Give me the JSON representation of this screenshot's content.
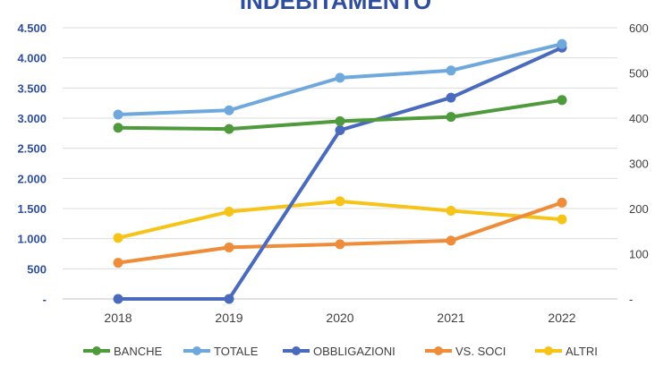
{
  "chart_data": {
    "type": "line",
    "title": "INDEBITAMENTO",
    "categories": [
      "2018",
      "2019",
      "2020",
      "2021",
      "2022"
    ],
    "y_left": {
      "ylim": [
        0,
        4500
      ],
      "ticks": [
        "-",
        "500",
        "1.000",
        "1.500",
        "2.000",
        "2.500",
        "3.000",
        "3.500",
        "4.000",
        "4.500"
      ],
      "color": "#2f4e9c"
    },
    "y_right": {
      "ylim": [
        0,
        600
      ],
      "ticks": [
        "-",
        "100",
        "200",
        "300",
        "400",
        "500",
        "600"
      ]
    },
    "grid": true,
    "legend_position": "bottom",
    "series": [
      {
        "name": "BANCHE",
        "axis": "left",
        "color": "#4e9a3c",
        "values": [
          2840,
          2820,
          2950,
          3020,
          3300
        ]
      },
      {
        "name": "TOTALE",
        "axis": "left",
        "color": "#6fa8dc",
        "values": [
          3060,
          3130,
          3670,
          3790,
          4230
        ]
      },
      {
        "name": "OBBLIGAZIONI",
        "axis": "left",
        "color": "#4a6bbd",
        "values": [
          0,
          0,
          2800,
          3340,
          4170
        ]
      },
      {
        "name": "VS. SOCI",
        "axis": "right",
        "color": "#ee8c3a",
        "values": [
          80,
          114,
          121,
          129,
          213
        ]
      },
      {
        "name": "ALTRI",
        "axis": "right",
        "color": "#f6c419",
        "values": [
          135,
          193,
          216,
          195,
          176
        ]
      }
    ]
  }
}
